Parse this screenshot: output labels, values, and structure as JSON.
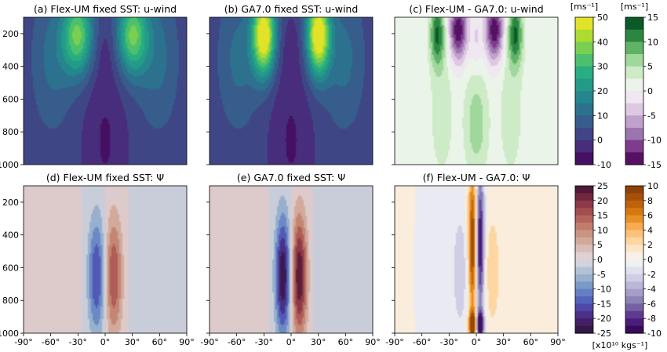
{
  "chart_data": {
    "type": "contour",
    "panels": [
      {
        "title": "(a) Flex-UM fixed SST: u-wind",
        "field": "u",
        "variant": "a",
        "cmap": "viridis",
        "vmin": -10,
        "vmax": 50
      },
      {
        "title": "(b) GA7.0 fixed SST: u-wind",
        "field": "u",
        "variant": "b",
        "cmap": "viridis",
        "vmin": -10,
        "vmax": 50
      },
      {
        "title": "(c) Flex-UM - GA7.0: u-wind",
        "field": "du",
        "variant": "c",
        "cmap": "prgn",
        "vmin": -15,
        "vmax": 15
      },
      {
        "title": "(d) Flex-UM fixed SST: Ψ",
        "field": "psi",
        "variant": "d",
        "cmap": "twilight",
        "vmin": -25,
        "vmax": 25
      },
      {
        "title": "(e) GA7.0 fixed SST: Ψ",
        "field": "psi",
        "variant": "e",
        "cmap": "twilight",
        "vmin": -25,
        "vmax": 25
      },
      {
        "title": "(f) Flex-UM - GA7.0: Ψ",
        "field": "dpsi",
        "variant": "f",
        "cmap": "puor",
        "vmin": -10,
        "vmax": 10
      }
    ],
    "y_ticks": [
      "200",
      "400",
      "600",
      "800",
      "1000"
    ],
    "y_values": [
      200,
      400,
      600,
      800,
      1000
    ],
    "ylim": [
      1000,
      100
    ],
    "x_ticks": [
      "-90°",
      "-60°",
      "-30°",
      "0°",
      "30°",
      "60°",
      "90°"
    ],
    "x_values": [
      -90,
      -60,
      -30,
      0,
      30,
      60,
      90
    ],
    "xlim": [
      -90,
      90
    ],
    "colorbars": [
      {
        "id": "u",
        "unit": "[ms⁻¹]",
        "ticks": [
          "50",
          "40",
          "30",
          "20",
          "10",
          "0",
          "-10"
        ],
        "min": -10,
        "max": 50,
        "cmap": "viridis"
      },
      {
        "id": "du",
        "unit": "[ms⁻¹]",
        "ticks": [
          "15",
          "10",
          "5",
          "0",
          "-5",
          "-10",
          "-15"
        ],
        "min": -15,
        "max": 15,
        "cmap": "prgn"
      },
      {
        "id": "psi",
        "unit": "",
        "ticks": [
          "25",
          "20",
          "15",
          "10",
          "5",
          "0",
          "-5",
          "-10",
          "-15",
          "-20",
          "-25"
        ],
        "min": -25,
        "max": 25,
        "cmap": "twilight"
      },
      {
        "id": "dpsi",
        "unit": "",
        "ticks": [
          "10",
          "8",
          "6",
          "4",
          "2",
          "0",
          "-2",
          "-4",
          "-6",
          "-8",
          "-10"
        ],
        "min": -10,
        "max": 10,
        "cmap": "puor"
      }
    ],
    "psi_unit": "[x10¹⁰ kgs⁻¹]",
    "colors": {
      "viridis": [
        "#440154",
        "#472d7b",
        "#3b528b",
        "#2c728e",
        "#21918c",
        "#28ae80",
        "#5ec962",
        "#addc30",
        "#fde725"
      ],
      "prgn": [
        "#40004b",
        "#762a83",
        "#9970ab",
        "#c2a5cf",
        "#e7d4e8",
        "#f7f7f7",
        "#d9f0d3",
        "#a6dba0",
        "#5aae61",
        "#1b7837",
        "#00441b"
      ],
      "twilight": [
        "#2f1436",
        "#4a2377",
        "#4f55b6",
        "#6c8ec6",
        "#a5bccf",
        "#e2d9e2",
        "#d6b4a9",
        "#c58a75",
        "#ad5854",
        "#822f44",
        "#3e1330"
      ],
      "puor": [
        "#2d004b",
        "#542788",
        "#8073ac",
        "#b2abd2",
        "#d8daeb",
        "#f7f7f7",
        "#fee0b6",
        "#fdb863",
        "#e08214",
        "#b35806",
        "#7f3b08"
      ]
    }
  }
}
